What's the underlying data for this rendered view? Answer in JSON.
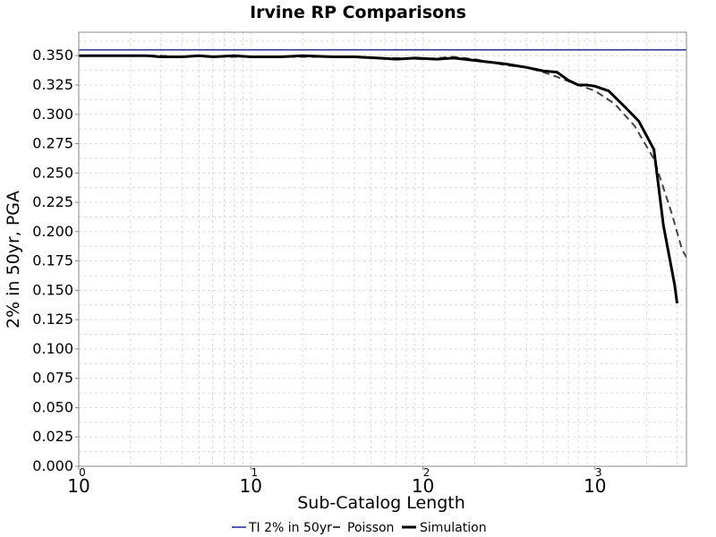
{
  "chart_data": {
    "type": "line",
    "title": "Irvine RP Comparisons",
    "xlabel": "Sub-Catalog Length",
    "ylabel": "2% in 50yr, PGA",
    "x_scale": "log",
    "xlim": [
      1,
      3400
    ],
    "ylim": [
      0,
      0.37
    ],
    "grid": true,
    "legend_position": "bottom",
    "x_ticks": [
      {
        "value": 1,
        "base": "10",
        "exp": "0"
      },
      {
        "value": 10,
        "base": "10",
        "exp": "1"
      },
      {
        "value": 100,
        "base": "10",
        "exp": "2"
      },
      {
        "value": 1000,
        "base": "10",
        "exp": "3"
      }
    ],
    "y_ticks": [
      "0.000",
      "0.025",
      "0.050",
      "0.075",
      "0.100",
      "0.125",
      "0.150",
      "0.175",
      "0.200",
      "0.225",
      "0.250",
      "0.275",
      "0.300",
      "0.325",
      "0.350"
    ],
    "series": [
      {
        "name": "TI 2% in 50yr",
        "color": "#33339a",
        "style": "solid",
        "points": [
          [
            1,
            0.355
          ],
          [
            3400,
            0.355
          ]
        ]
      },
      {
        "name": "Poisson",
        "color": "#444444",
        "style": "dashed",
        "points": [
          [
            1,
            0.35
          ],
          [
            1.5,
            0.35
          ],
          [
            2,
            0.35
          ],
          [
            3,
            0.35
          ],
          [
            4,
            0.349
          ],
          [
            5,
            0.35
          ],
          [
            7,
            0.349
          ],
          [
            10,
            0.349
          ],
          [
            15,
            0.349
          ],
          [
            20,
            0.349
          ],
          [
            30,
            0.349
          ],
          [
            40,
            0.349
          ],
          [
            55,
            0.348
          ],
          [
            70,
            0.348
          ],
          [
            100,
            0.347
          ],
          [
            150,
            0.349
          ],
          [
            200,
            0.347
          ],
          [
            300,
            0.342
          ],
          [
            400,
            0.34
          ],
          [
            500,
            0.336
          ],
          [
            600,
            0.332
          ],
          [
            800,
            0.325
          ],
          [
            1000,
            0.32
          ],
          [
            1300,
            0.309
          ],
          [
            1700,
            0.29
          ],
          [
            2200,
            0.262
          ],
          [
            2800,
            0.215
          ],
          [
            3200,
            0.185
          ],
          [
            3400,
            0.178
          ]
        ]
      },
      {
        "name": "Simulation",
        "color": "#000000",
        "style": "solid",
        "points": [
          [
            1,
            0.35
          ],
          [
            1.5,
            0.35
          ],
          [
            2,
            0.35
          ],
          [
            2.5,
            0.35
          ],
          [
            3,
            0.349
          ],
          [
            4,
            0.349
          ],
          [
            5,
            0.35
          ],
          [
            6,
            0.349
          ],
          [
            8,
            0.35
          ],
          [
            10,
            0.349
          ],
          [
            15,
            0.349
          ],
          [
            20,
            0.35
          ],
          [
            30,
            0.349
          ],
          [
            40,
            0.349
          ],
          [
            55,
            0.348
          ],
          [
            70,
            0.347
          ],
          [
            90,
            0.348
          ],
          [
            120,
            0.347
          ],
          [
            150,
            0.348
          ],
          [
            200,
            0.346
          ],
          [
            300,
            0.343
          ],
          [
            400,
            0.34
          ],
          [
            500,
            0.337
          ],
          [
            600,
            0.336
          ],
          [
            700,
            0.329
          ],
          [
            800,
            0.325
          ],
          [
            900,
            0.325
          ],
          [
            1000,
            0.324
          ],
          [
            1200,
            0.32
          ],
          [
            1500,
            0.306
          ],
          [
            1800,
            0.294
          ],
          [
            2200,
            0.27
          ],
          [
            2500,
            0.205
          ],
          [
            2900,
            0.155
          ],
          [
            3000,
            0.139
          ]
        ]
      }
    ]
  }
}
